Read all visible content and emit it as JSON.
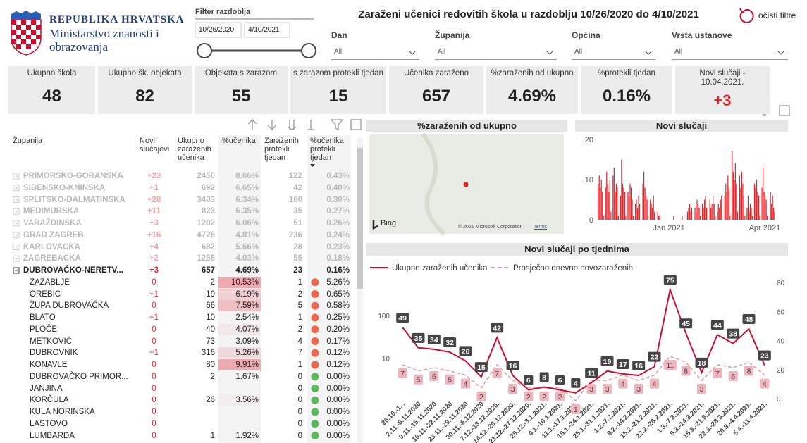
{
  "header": {
    "logo_lines": [
      "REPUBLIKA HRVATSKA",
      "Ministarstvo znanosti i",
      "obrazovanja"
    ],
    "title": "Zaraženi učenici redovitih škola u razdoblju 10/26/2020 do 4/10/2021",
    "clear_filters": "očisti filtre"
  },
  "period_filter": {
    "label": "Filter razdoblja",
    "start": "10/26/2020",
    "end": "4/10/2021"
  },
  "dropdowns": [
    {
      "label": "Dan",
      "value": "All"
    },
    {
      "label": "Županija",
      "value": "All"
    },
    {
      "label": "Općina",
      "value": "All"
    },
    {
      "label": "Vrsta ustanove",
      "value": "All"
    }
  ],
  "kpis": [
    {
      "label": "Ukupno škola",
      "value": "48"
    },
    {
      "label": "Ukupno šk. objekata",
      "value": "82"
    },
    {
      "label": "Objekata s zarazom",
      "value": "55"
    },
    {
      "label": "s zarazom protekli tjedan",
      "value": "15"
    },
    {
      "label": "Učenika zaraženo",
      "value": "657"
    },
    {
      "label": "%zaraženih od ukupno",
      "value": "4.69%"
    },
    {
      "label": "%protekli tjedan",
      "value": "0.16%"
    },
    {
      "label": "Novi slučaji - 10.04.2021.",
      "value": "+3"
    }
  ],
  "table": {
    "columns": [
      "Županija",
      "Novi slučajevi",
      "Ukupno zaraženih učenika",
      "%učenika",
      "Zaraženih protekli tjedan",
      "%učenika protekli tjedan"
    ],
    "rows": [
      [
        "PRIMORSKO-GORANSKA",
        "+23",
        "2450",
        "8.66%",
        "122",
        "0.43%"
      ],
      [
        "SIBENSKO-KNINSKA",
        "+1",
        "692",
        "6.65%",
        "42",
        "0.40%"
      ],
      [
        "SPLITSKO-DALMATINSKA",
        "+28",
        "3403",
        "6.34%",
        "160",
        "0.30%"
      ],
      [
        "MEDIMURSKA",
        "+11",
        "823",
        "6.35%",
        "35",
        "0.27%"
      ],
      [
        "VARAŽDINSKA",
        "+3",
        "1202",
        "6.06%",
        "51",
        "0.26%"
      ],
      [
        "GRAD ZAGREB",
        "+16",
        "4726",
        "4.81%",
        "236",
        "0.24%"
      ],
      [
        "KARLOVACKA",
        "+4",
        "682",
        "5.66%",
        "28",
        "0.23%"
      ],
      [
        "ZAGREBACKA",
        "+2",
        "1258",
        "4.03%",
        "55",
        "0.18%"
      ],
      [
        "DUBROVAČKO-NERETV...",
        "+3",
        "657",
        "4.69%",
        "23",
        "0.16%"
      ]
    ],
    "municipalities": [
      [
        "ZAZABLJE",
        "0",
        "2",
        "10.53%",
        "1",
        "5.26%"
      ],
      [
        "OREBIC",
        "+1",
        "19",
        "6.19%",
        "2",
        "0.65%"
      ],
      [
        "ŽUPA DUBROVAČKA",
        "0",
        "66",
        "7.59%",
        "5",
        "0.58%"
      ],
      [
        "BLATO",
        "+1",
        "10",
        "2.54%",
        "1",
        "0.25%"
      ],
      [
        "PLOČE",
        "0",
        "40",
        "4.07%",
        "2",
        "0.20%"
      ],
      [
        "METKOVIĆ",
        "0",
        "73",
        "3.09%",
        "4",
        "0.17%"
      ],
      [
        "DUBROVNIK",
        "+1",
        "316",
        "5.26%",
        "7",
        "0.12%"
      ],
      [
        "KONAVLE",
        "0",
        "80",
        "9.91%",
        "1",
        "0.12%"
      ],
      [
        "DUBROVAČKO PRIMOR...",
        "0",
        "2",
        "1.67%",
        "0",
        "0.00%"
      ],
      [
        "JANJINA",
        "0",
        null,
        null,
        "0",
        "0.00%"
      ],
      [
        "KORČULA",
        "0",
        "26",
        "3.56%",
        "0",
        "0.00%"
      ],
      [
        "KULA NORINSKA",
        "0",
        null,
        null,
        "0",
        "0.00%"
      ],
      [
        "LASTOVO",
        "0",
        null,
        null,
        "0",
        "0.00%"
      ],
      [
        "LUMBARDA",
        "0",
        "1",
        "1.92%",
        "0",
        "0.00%"
      ]
    ]
  },
  "map": {
    "title": "%zaraženih od ukupno",
    "provider": "Bing",
    "copyright": "© 2021 Microsoft Corporation",
    "terms": "Terms"
  },
  "chart_data": [
    {
      "type": "bar",
      "title": "Novi slučaji",
      "color": "#e0262b",
      "xlim": [
        "2020-10-26",
        "2021-04-10"
      ],
      "xticks": [
        {
          "value": "2021-01",
          "label": "Jan 2021"
        },
        {
          "value": "2021-04",
          "label": "Apr 2021"
        }
      ],
      "ylim": [
        0,
        20
      ],
      "yticks": [
        0,
        10,
        20
      ],
      "values": [
        9,
        11,
        8,
        10,
        7,
        1,
        0,
        8,
        12,
        9,
        7,
        10,
        2,
        0,
        11,
        13,
        7,
        9,
        8,
        1,
        0,
        6,
        15,
        9,
        8,
        7,
        1,
        0,
        7,
        6,
        9,
        8,
        5,
        1,
        0,
        4,
        5,
        3,
        6,
        4,
        0,
        0,
        9,
        12,
        8,
        6,
        5,
        1,
        0,
        5,
        4,
        3,
        6,
        2,
        0,
        0,
        2,
        1,
        1,
        0,
        0,
        0,
        0,
        0,
        0,
        0,
        0,
        0,
        0,
        0,
        0,
        1,
        0,
        0,
        0,
        0,
        0,
        0,
        0,
        1,
        0,
        0,
        0,
        0,
        2,
        3,
        4,
        2,
        3,
        0,
        0,
        3,
        2,
        5,
        4,
        3,
        1,
        0,
        4,
        3,
        5,
        6,
        3,
        0,
        0,
        5,
        3,
        4,
        6,
        4,
        1,
        0,
        2,
        4,
        3,
        5,
        6,
        0,
        0,
        6,
        9,
        7,
        11,
        8,
        1,
        0,
        17,
        12,
        10,
        14,
        9,
        2,
        0,
        11,
        8,
        12,
        9,
        6,
        1,
        0,
        3,
        6,
        2,
        4,
        3,
        1,
        0,
        9,
        8,
        10,
        7,
        6,
        1,
        0,
        8,
        13,
        7,
        6,
        5,
        1,
        0,
        0,
        7,
        4,
        6,
        3,
        2
      ]
    },
    {
      "type": "line",
      "title": "Novi slučaji po tjednima",
      "categories": [
        "26.10.-1...",
        "2.11.-8.11.2020",
        "9.11.-15.11.2020",
        "16.11.-22.11.2020",
        "23.11.-29.11.2020",
        "30.11.-6.12.2020",
        "7.12.-13.12.2020.",
        "14.12.-20.12.2020.",
        "21.12.-27.12.2020.",
        "28.12.-3.1.2021.",
        "4.1.-10.1.2021.",
        "11.1.-17.1.2021.",
        "18.1.-24.1.2021.",
        "25.1.-31.1.2021.",
        "1.2.-7.2.2021.",
        "8.2.-14.2.2021.",
        "15.2.-21.2.2021.",
        "22.2.-28.2.2021.",
        "1.3.-7.3.2021.",
        "8.3.-14.3.2021.",
        "15.3.-21.3.2021.",
        "22.3.-28.3.2021.",
        "29.3.-4.4.2021.",
        "5.4.-11.4.2021."
      ],
      "series": [
        {
          "name": "Ukupno zaraženih učenika",
          "color": "#c8102e",
          "axis": "y2",
          "line_style": "solid",
          "values": [
            49,
            35,
            34,
            32,
            26,
            15,
            42,
            16,
            6,
            8,
            6,
            4,
            11,
            19,
            17,
            16,
            22,
            75,
            45,
            18,
            44,
            38,
            48,
            23
          ]
        },
        {
          "name": "Prosječno dnevno novozaraženih",
          "color": "#e39aa5",
          "line_style": "dashed",
          "values": [
            7,
            5,
            6,
            5,
            4,
            2,
            7,
            3,
            2,
            2,
            2,
            1,
            3,
            3,
            4,
            3,
            4,
            11,
            8,
            3,
            7,
            6,
            8,
            4
          ]
        }
      ],
      "log_scale": true,
      "ylim": [
        1,
        600
      ],
      "yticks": [
        10,
        100
      ],
      "y2lim": [
        0,
        80
      ],
      "y2ticks": [
        0,
        20,
        40,
        60,
        80
      ]
    }
  ]
}
